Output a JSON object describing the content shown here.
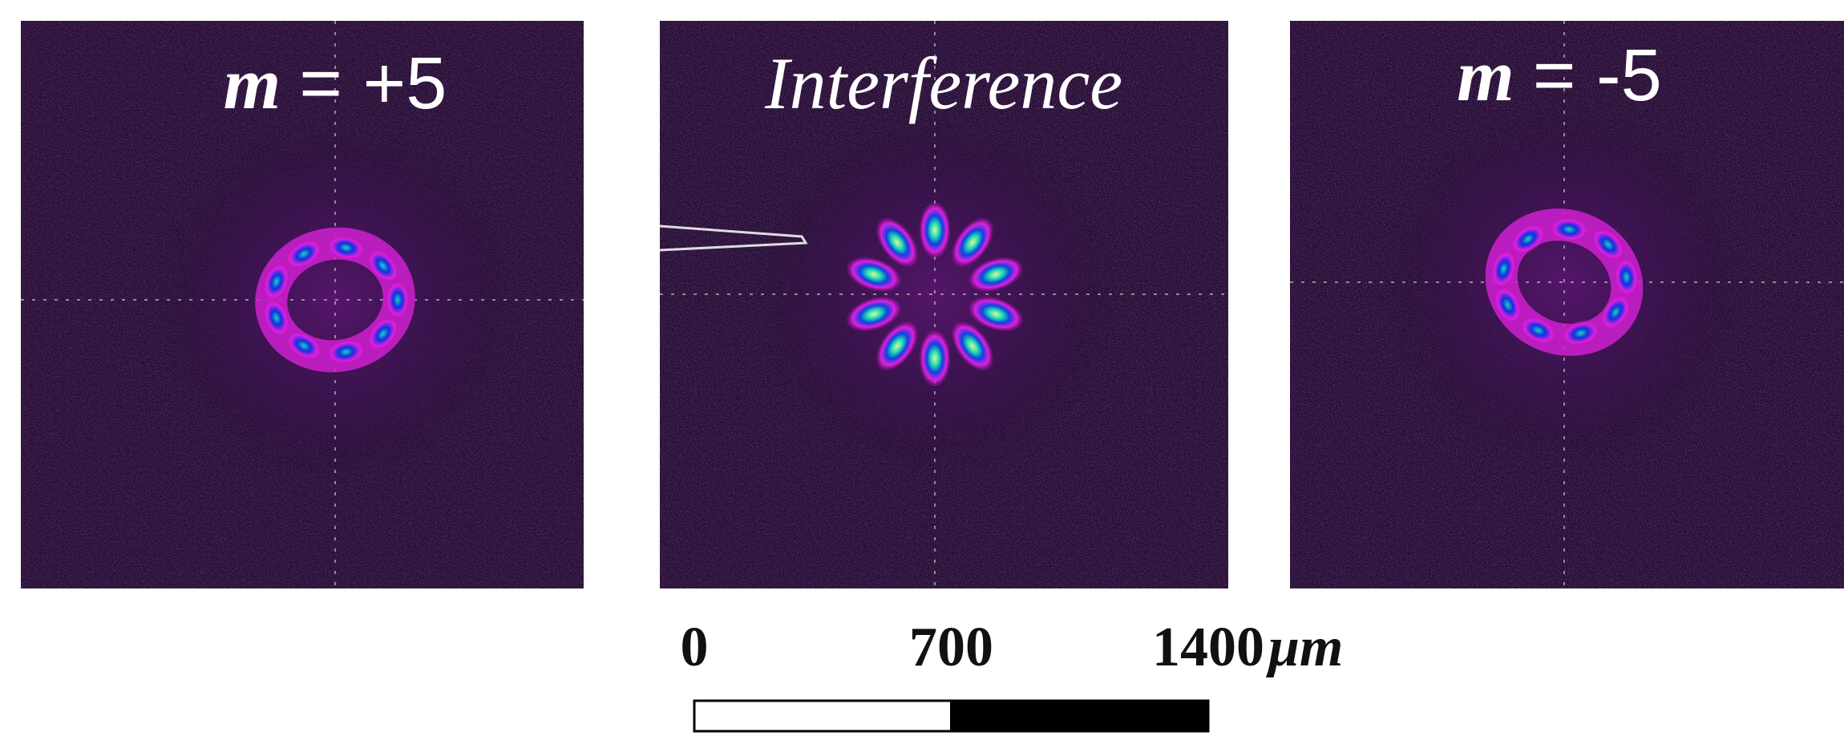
{
  "panels": [
    {
      "variable": "m",
      "relation": "= +5"
    },
    {
      "title": "Interference"
    },
    {
      "variable": "m",
      "relation": "= -5"
    }
  ],
  "scale_bar": {
    "ticks": [
      0,
      700,
      1400
    ],
    "unit": "μm"
  }
}
